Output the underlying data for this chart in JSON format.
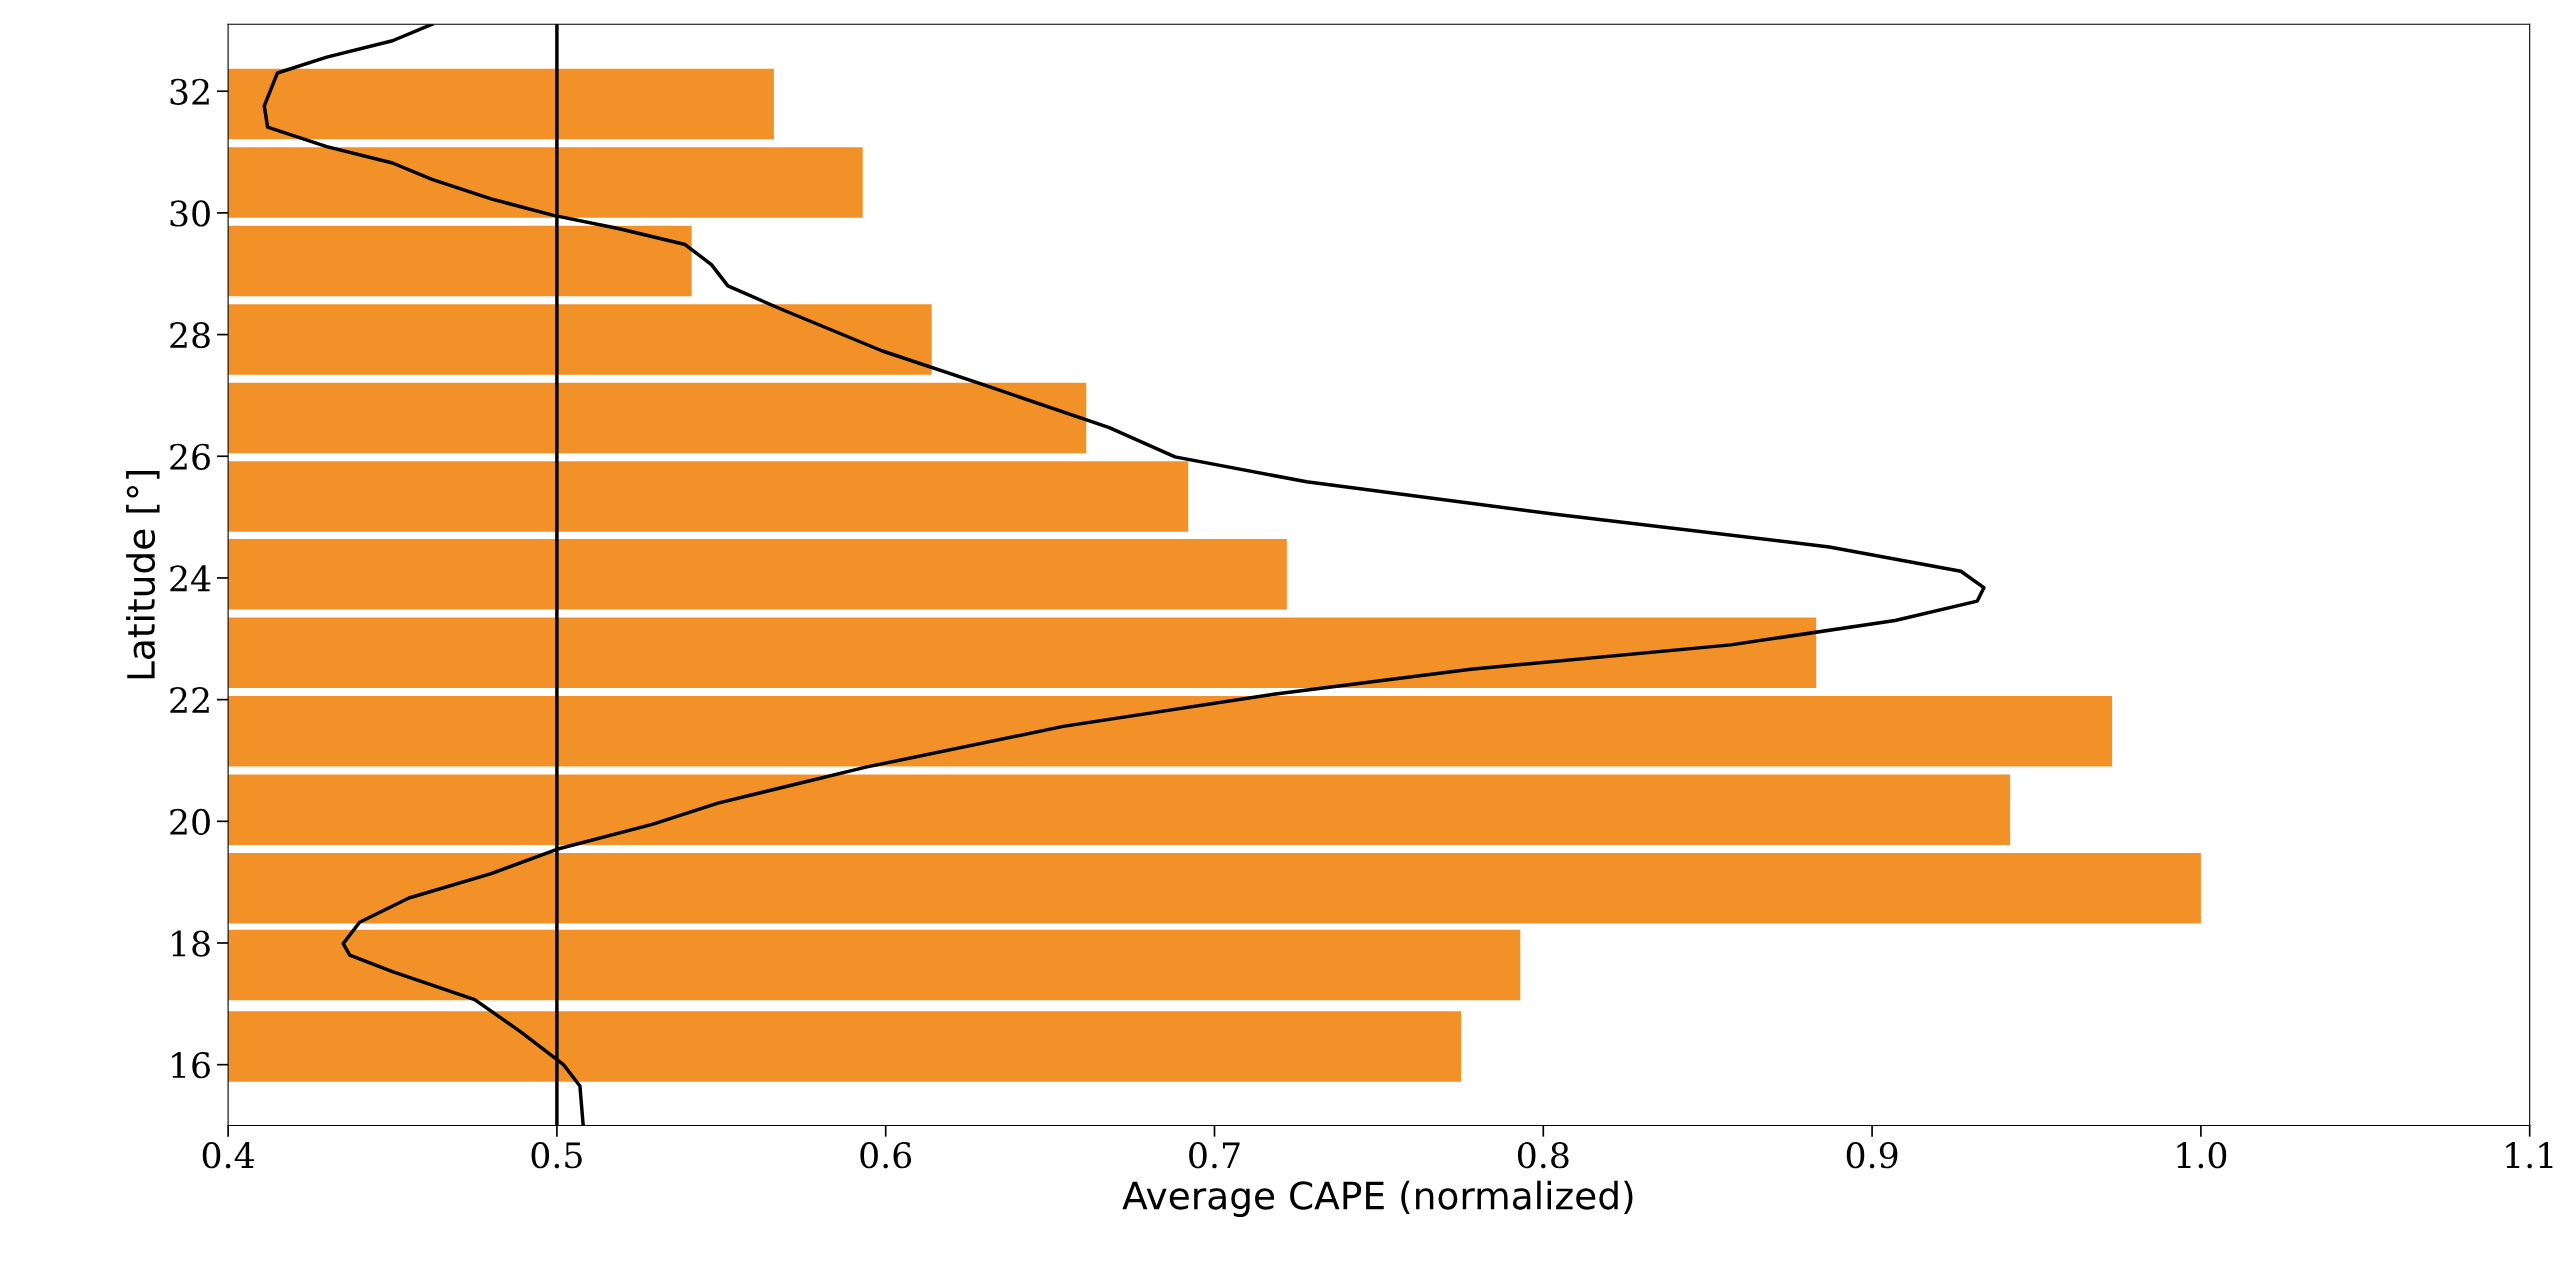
{
  "chart_data": {
    "type": "bar",
    "orientation": "horizontal",
    "xlabel": "Average CAPE (normalized)",
    "ylabel": "Latitude [°]",
    "xlim": [
      0.4,
      1.1
    ],
    "xticks": [
      0.4,
      0.5,
      0.6,
      0.7,
      0.8,
      0.9,
      {
        "value": 1.0,
        "label": "1.0"
      },
      1.1
    ],
    "ylim": [
      15,
      33.1
    ],
    "yticks": [
      16,
      18,
      20,
      22,
      24,
      26,
      28,
      30,
      32
    ],
    "grid": false,
    "legend": false,
    "series": [
      {
        "color": "#f39129",
        "x": [
          16.3,
          17.64,
          18.9,
          20.19,
          21.48,
          22.77,
          24.06,
          25.34,
          26.63,
          27.92,
          29.21,
          30.5,
          31.79
        ],
        "values": [
          0.775,
          0.793,
          1.0,
          0.942,
          0.973,
          0.883,
          0.722,
          0.692,
          0.661,
          0.614,
          0.541,
          0.593,
          0.566
        ]
      },
      {
        "type": "line",
        "color": "#000000",
        "line_style": "solid",
        "x": [
          15.0,
          15.65,
          16.0,
          16.54,
          17.07,
          17.53,
          17.8,
          17.99,
          18.34,
          18.74,
          19.14,
          19.54,
          19.95,
          20.3,
          20.89,
          21.56,
          22.09,
          22.5,
          22.9,
          23.3,
          23.62,
          23.84,
          24.11,
          24.51,
          25.05,
          25.58,
          25.99,
          26.47,
          27.19,
          27.73,
          28.4,
          28.8,
          29.15,
          29.48,
          29.74,
          29.96,
          30.23,
          30.55,
          30.82,
          31.09,
          31.41,
          31.76,
          32.3,
          32.56,
          32.83,
          33.1
        ],
        "values": [
          0.508,
          0.507,
          0.502,
          0.489,
          0.475,
          0.45,
          0.437,
          0.435,
          0.44,
          0.455,
          0.48,
          0.5,
          0.529,
          0.549,
          0.594,
          0.654,
          0.718,
          0.778,
          0.857,
          0.907,
          0.932,
          0.934,
          0.927,
          0.887,
          0.803,
          0.728,
          0.688,
          0.668,
          0.629,
          0.599,
          0.569,
          0.552,
          0.547,
          0.539,
          0.519,
          0.499,
          0.48,
          0.462,
          0.45,
          0.43,
          0.412,
          0.411,
          0.415,
          0.43,
          0.45,
          0.462
        ]
      }
    ],
    "ref_lines": [
      {
        "axis": "x",
        "value": 0.5,
        "color": "#000000"
      }
    ]
  }
}
